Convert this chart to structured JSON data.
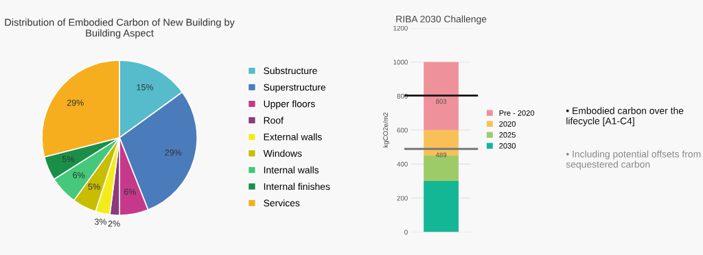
{
  "chart_data": [
    {
      "type": "pie",
      "title": "Distribution of Embodied Carbon of New Building by Building Aspect",
      "categories": [
        "Substructure",
        "Superstructure",
        "Upper floors",
        "Roof",
        "External walls",
        "Windows",
        "Internal walls",
        "Internal finishes",
        "Services"
      ],
      "values": [
        15,
        29,
        6,
        2,
        3,
        5,
        6,
        5,
        29
      ],
      "value_labels": [
        "15%",
        "29%",
        "6%",
        "2%",
        "3%",
        "5%",
        "6%",
        "5%",
        "29%"
      ],
      "colors": [
        "#56bccb",
        "#4a7cbc",
        "#c6398a",
        "#8e3a7e",
        "#f4ec1a",
        "#c9bd00",
        "#45c87a",
        "#1b8f4a",
        "#f6ae1f"
      ],
      "legend": "right"
    },
    {
      "type": "bar",
      "title": "RIBA 2030 Challenge",
      "ylabel": "kgCO2e/m2",
      "categories": [
        null
      ],
      "stacked": true,
      "series": [
        {
          "name": "2030",
          "color": "#13b795",
          "values": [
            300
          ]
        },
        {
          "name": "2025",
          "color": "#9ccb68",
          "values": [
            150
          ]
        },
        {
          "name": "2020",
          "color": "#f8c057",
          "values": [
            150
          ]
        },
        {
          "name": "Pre - 2020",
          "color": "#ef919b",
          "values": [
            400
          ]
        }
      ],
      "ylim": [
        0,
        1200
      ],
      "yticks": [
        0,
        200,
        400,
        600,
        800,
        1000,
        1200
      ],
      "grid": "y",
      "legend": "right",
      "ref_lines": [
        {
          "axis": "y",
          "value": 803,
          "label": "803",
          "color": "#111111"
        },
        {
          "axis": "y",
          "value": 489,
          "label": "489",
          "color": "#777777"
        }
      ],
      "annotations": [
        "• Embodied carbon over the lifecycle [A1-C4]",
        "• Including potential offsets from sequestered carbon"
      ]
    }
  ]
}
